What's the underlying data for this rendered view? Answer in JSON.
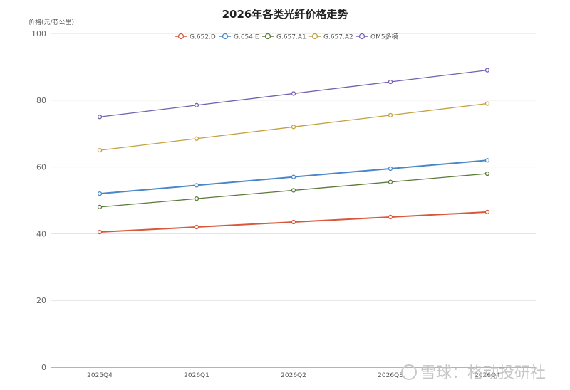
{
  "chart_data": {
    "type": "line",
    "title": "2026年各类光纤价格走势",
    "xlabel": "",
    "ylabel": "价格(元/芯公里)",
    "ylim": [
      0,
      100
    ],
    "yticks": [
      0,
      20,
      40,
      60,
      80,
      100
    ],
    "grid": true,
    "legend_position": "top",
    "categories": [
      "2025Q4",
      "2026Q1",
      "2026Q2",
      "2026Q3",
      "2026Q4"
    ],
    "series": [
      {
        "name": "G.652.D",
        "color": "#d9583b",
        "values": [
          40.5,
          42,
          43.5,
          45,
          46.5
        ]
      },
      {
        "name": "G.654.E",
        "color": "#4a87c8",
        "values": [
          52,
          54.5,
          57,
          59.5,
          62
        ]
      },
      {
        "name": "G.657.A1",
        "color": "#5b7a3a",
        "values": [
          48,
          50.5,
          53,
          55.5,
          58
        ]
      },
      {
        "name": "G.657.A2",
        "color": "#c4a03f",
        "values": [
          65,
          68.5,
          72,
          75.5,
          79
        ]
      },
      {
        "name": "OM5多模",
        "color": "#7460b0",
        "values": [
          75,
          78.5,
          82,
          85.5,
          89
        ]
      }
    ]
  },
  "watermark": "雪球：格动投研社"
}
